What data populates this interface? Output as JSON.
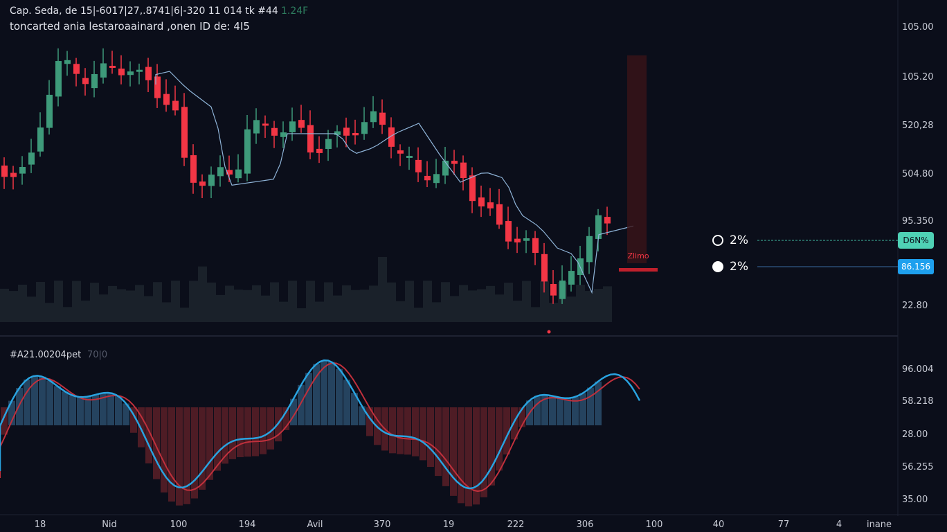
{
  "header": {
    "title": "Cap. Seda, de 15|-6017|27,.8741|6|-320 11 014 tk  #44",
    "title_tag": "1.24F",
    "subtitle": "toncarted ania lestaroaainard ,onen ID de: 4I5"
  },
  "price_axis": [
    "105.00",
    "105.20",
    "520,28",
    "504.80",
    "95.350",
    "22.80"
  ],
  "indicator": {
    "label": "#A21.00204pet",
    "sub": "70|0",
    "axis": [
      "96.004",
      "58.218",
      "28.00",
      "56.255",
      "35.00"
    ]
  },
  "time_axis": [
    "18",
    "Nid",
    "100",
    "194",
    "Avil",
    "370",
    "19",
    "222",
    "306",
    "100",
    "40",
    "77",
    "4",
    "inane"
  ],
  "markers": [
    {
      "label": "2%",
      "tag": "D6N%"
    },
    {
      "label": "2%",
      "tag": "86.156"
    }
  ],
  "annotation": "Zlimo"
}
